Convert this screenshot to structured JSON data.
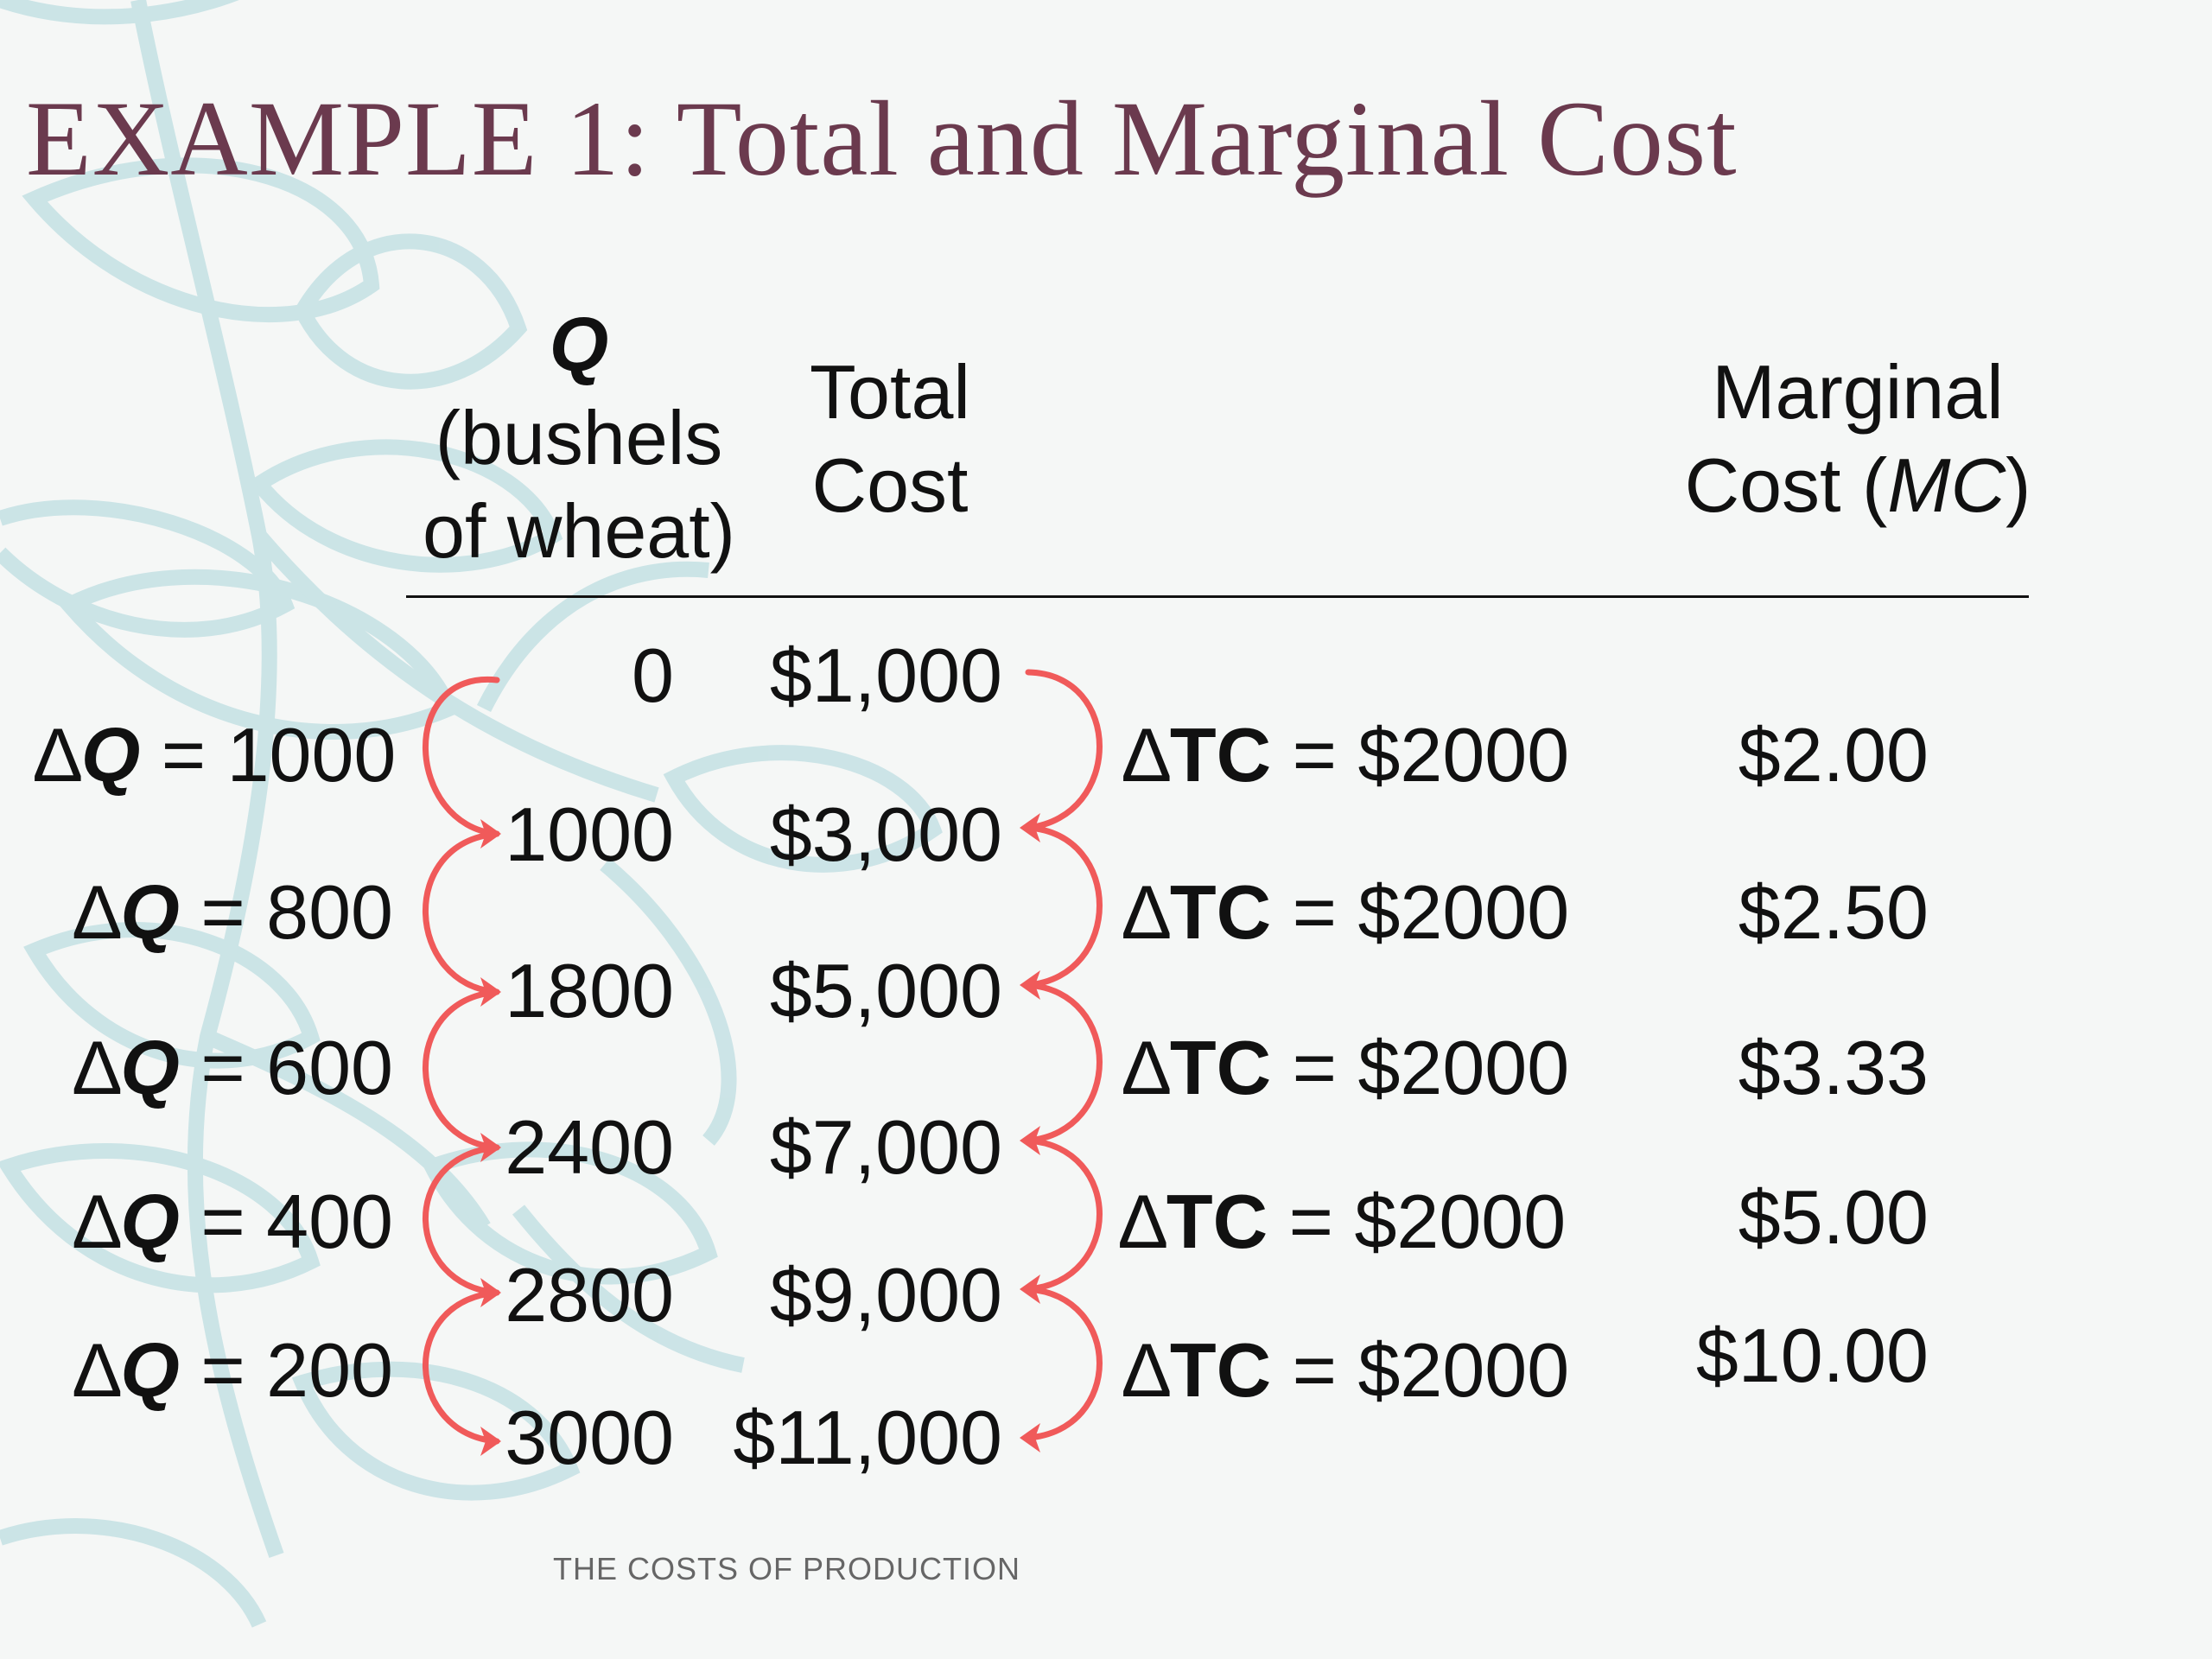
{
  "title": "EXAMPLE 1:  Total and Marginal Cost",
  "headers": {
    "q_symbol": "Q",
    "q_line1": "(bushels",
    "q_line2": "of wheat)",
    "tc_line1": "Total",
    "tc_line2": "Cost",
    "mc_line1": "Marginal",
    "mc_line2_prefix": "Cost (",
    "mc_symbol": "MC",
    "mc_line2_suffix": ")"
  },
  "rows": [
    {
      "q": "0",
      "tc": "$1,000"
    },
    {
      "q": "1000",
      "tc": "$3,000"
    },
    {
      "q": "1800",
      "tc": "$5,000"
    },
    {
      "q": "2400",
      "tc": "$7,000"
    },
    {
      "q": "2800",
      "tc": "$9,000"
    },
    {
      "q": "3000",
      "tc": "$11,000"
    }
  ],
  "delta_q": [
    {
      "symbol": "∆",
      "var": "Q",
      "eq": " = 1000"
    },
    {
      "symbol": "∆",
      "var": "Q",
      "eq": " = 800"
    },
    {
      "symbol": "∆",
      "var": "Q",
      "eq": " = 600"
    },
    {
      "symbol": "∆",
      "var": "Q",
      "eq": " = 400"
    },
    {
      "symbol": "∆",
      "var": "Q",
      "eq": " = 200"
    }
  ],
  "delta_tc": [
    {
      "symbol": "∆",
      "var": "TC",
      "eq": " = $2000"
    },
    {
      "symbol": "∆",
      "var": "TC",
      "eq": " = $2000"
    },
    {
      "symbol": "∆",
      "var": "TC",
      "eq": " = $2000"
    },
    {
      "symbol": "∆",
      "var": "TC",
      "eq": " = $2000"
    },
    {
      "symbol": "∆",
      "var": "TC",
      "eq": " = $2000"
    }
  ],
  "mc": [
    "$2.00",
    "$2.50",
    "$3.33",
    "$5.00",
    "$10.00"
  ],
  "footer": "THE COSTS OF PRODUCTION",
  "colors": {
    "title": "#6b3a4e",
    "arrow": "#f05a5a",
    "background_art": "#bfdfe2"
  }
}
